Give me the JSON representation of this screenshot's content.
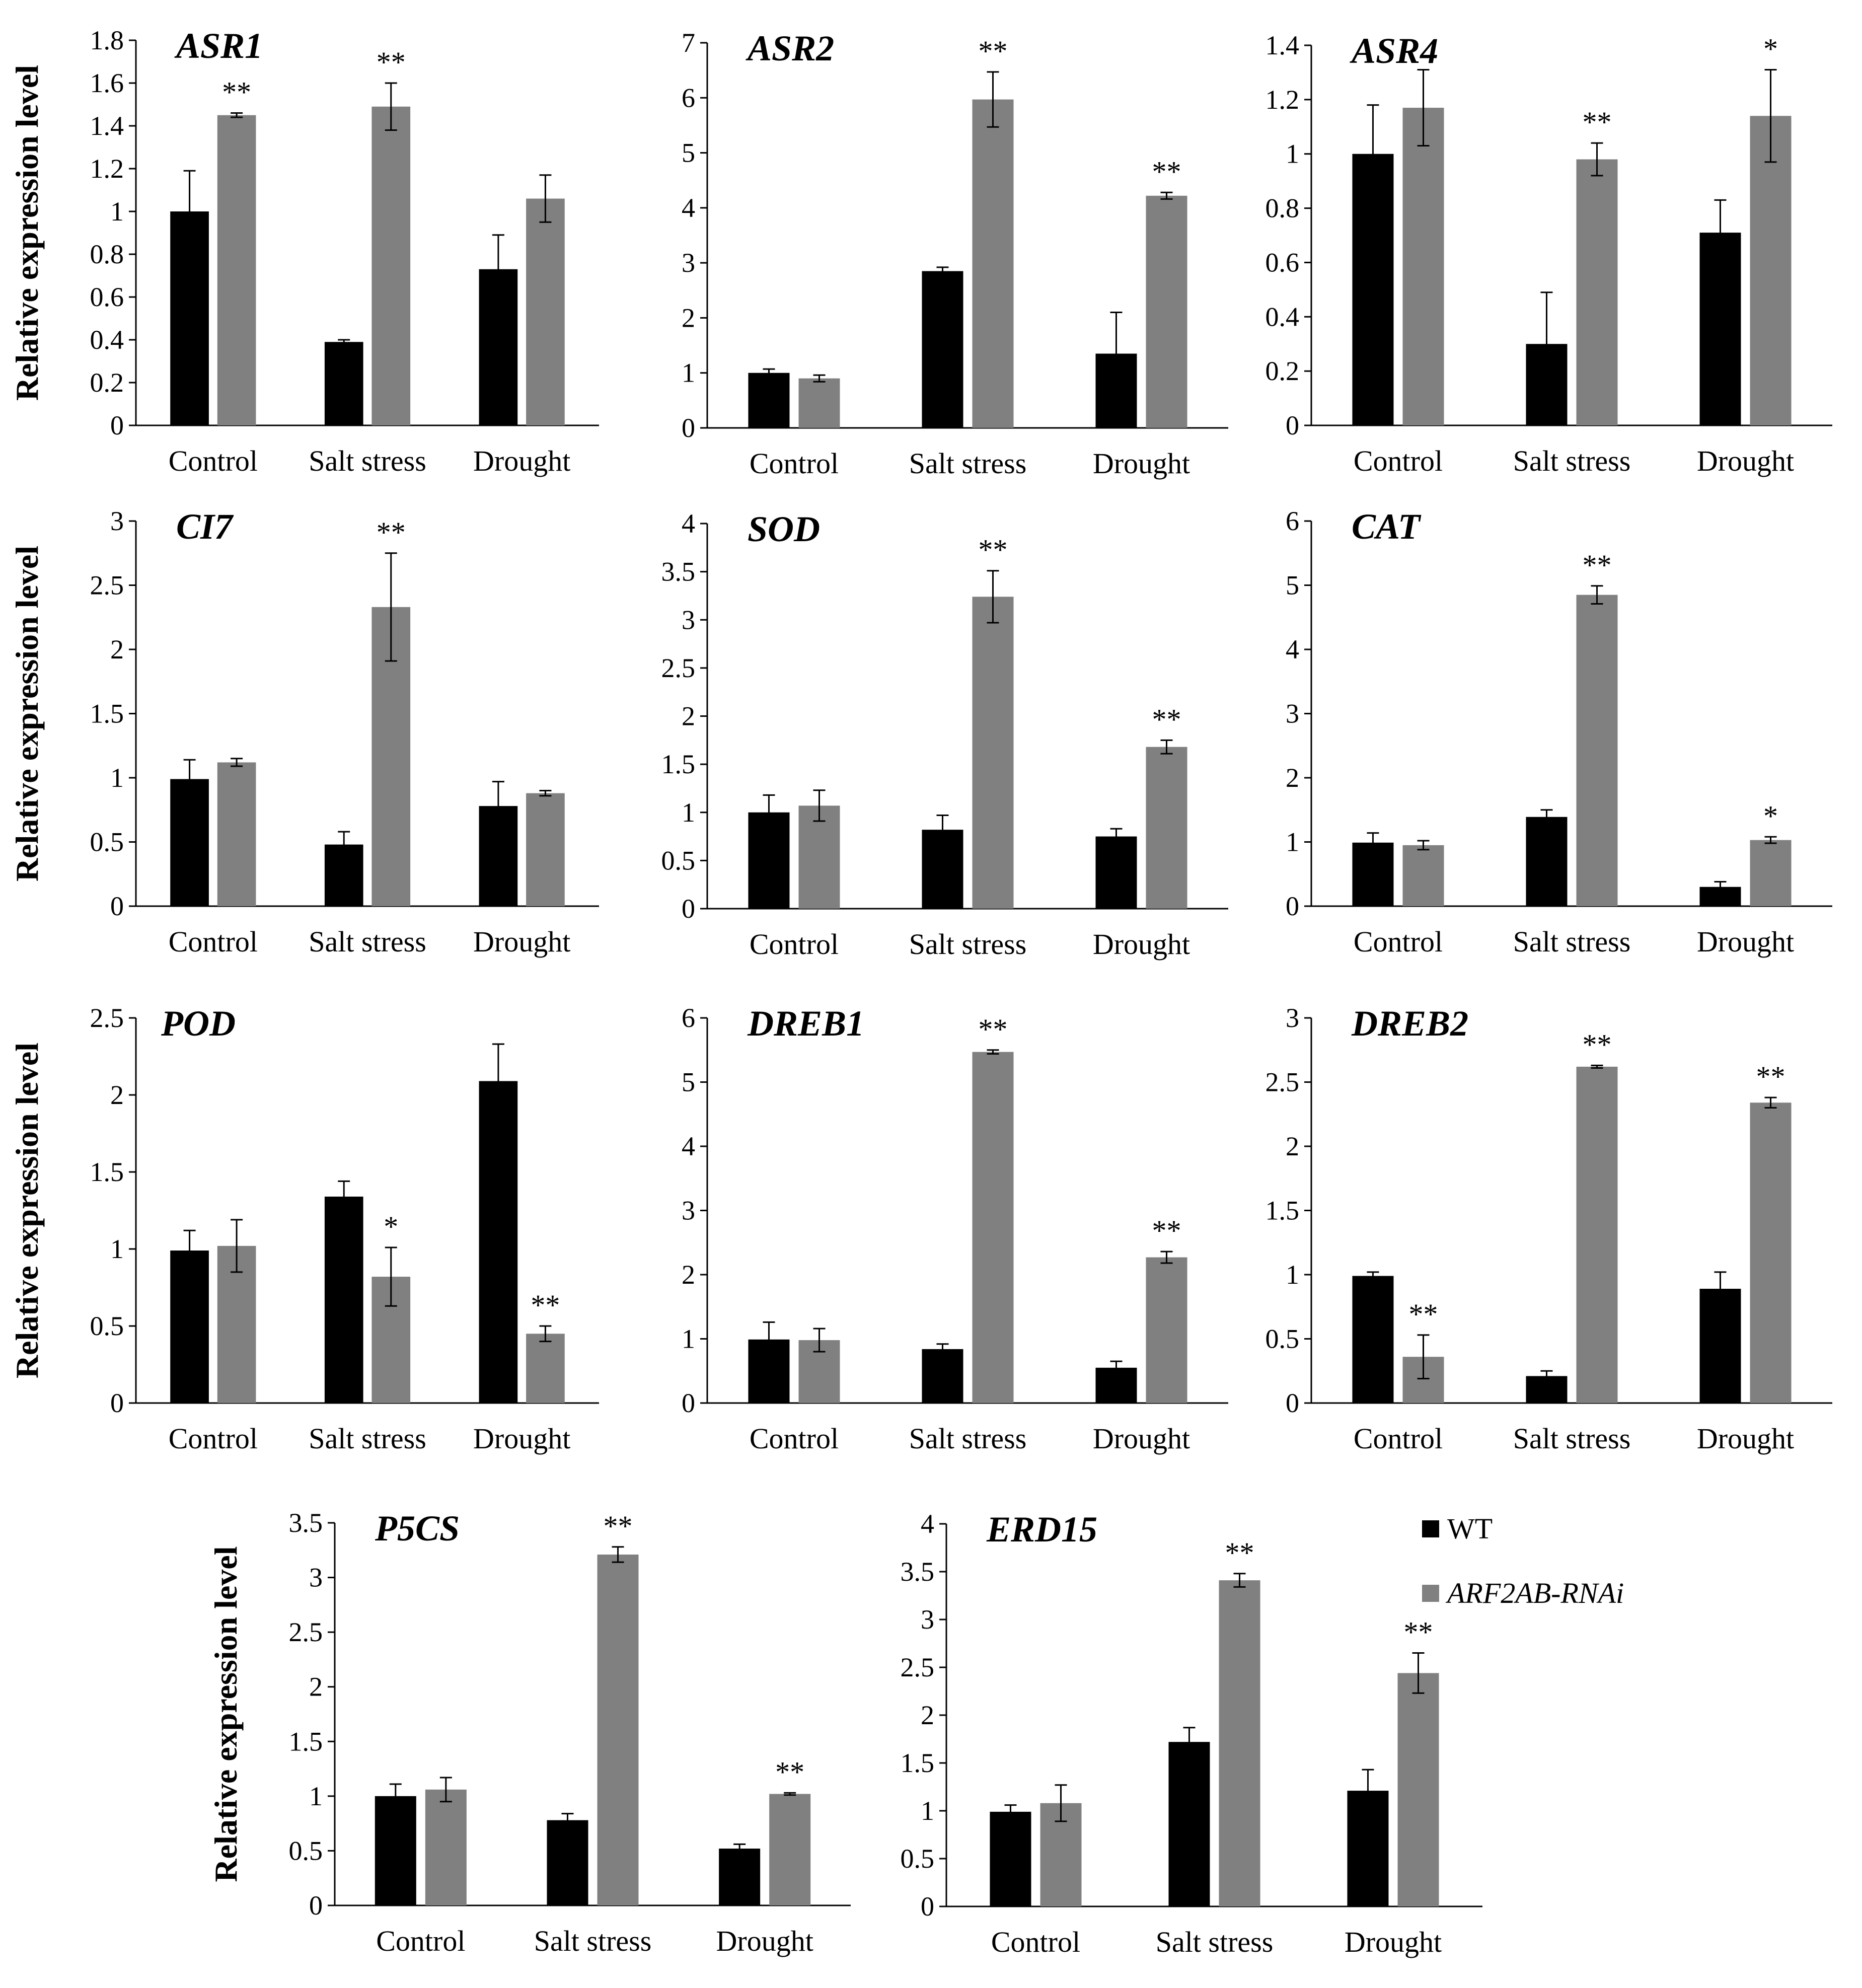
{
  "figure": {
    "y_axis_label": "Relative expression level",
    "categories": [
      "Control",
      "Salt stress",
      "Drought"
    ],
    "legend": {
      "wt_label": "WT",
      "rnai_label": "ARF2AB-RNAi",
      "wt_color": "#000000",
      "rnai_color": "#808080"
    }
  },
  "chart_data": [
    {
      "type": "bar",
      "title": "ASR1",
      "ylabel": "Relative expression level",
      "categories": [
        "Control",
        "Salt stress",
        "Drought"
      ],
      "ylim": [
        0,
        1.8
      ],
      "ticks": [
        "0",
        "0.2",
        "0.4",
        "0.6",
        "0.8",
        "1",
        "1.2",
        "1.4",
        "1.6",
        "1.8"
      ],
      "series": [
        {
          "name": "WT",
          "values": [
            1.0,
            0.39,
            0.73
          ],
          "errors": [
            0.19,
            0.01,
            0.16
          ],
          "significance": [
            "",
            "",
            ""
          ]
        },
        {
          "name": "ARF2AB-RNAi",
          "values": [
            1.45,
            1.49,
            1.06
          ],
          "errors": [
            0.01,
            0.11,
            0.11
          ],
          "significance": [
            "**",
            "**",
            ""
          ]
        }
      ]
    },
    {
      "type": "bar",
      "title": "ASR2",
      "ylabel": "",
      "categories": [
        "Control",
        "Salt stress",
        "Drought"
      ],
      "ylim": [
        0,
        7
      ],
      "ticks": [
        "0",
        "1",
        "2",
        "3",
        "4",
        "5",
        "6",
        "7"
      ],
      "series": [
        {
          "name": "WT",
          "values": [
            1.0,
            2.85,
            1.35
          ],
          "errors": [
            0.07,
            0.07,
            0.75
          ],
          "significance": [
            "",
            "",
            ""
          ]
        },
        {
          "name": "ARF2AB-RNAi",
          "values": [
            0.9,
            5.97,
            4.22
          ],
          "errors": [
            0.06,
            0.5,
            0.06
          ],
          "significance": [
            "",
            "**",
            "**"
          ]
        }
      ]
    },
    {
      "type": "bar",
      "title": "ASR4",
      "ylabel": "",
      "categories": [
        "Control",
        "Salt stress",
        "Drought"
      ],
      "ylim": [
        0,
        1.4
      ],
      "ticks": [
        "0",
        "0.2",
        "0.4",
        "0.6",
        "0.8",
        "1",
        "1.2",
        "1.4"
      ],
      "series": [
        {
          "name": "WT",
          "values": [
            1.0,
            0.3,
            0.71
          ],
          "errors": [
            0.18,
            0.19,
            0.12
          ],
          "significance": [
            "",
            "",
            ""
          ]
        },
        {
          "name": "ARF2AB-RNAi",
          "values": [
            1.17,
            0.98,
            1.14
          ],
          "errors": [
            0.14,
            0.06,
            0.17
          ],
          "significance": [
            "",
            "**",
            "*"
          ]
        }
      ]
    },
    {
      "type": "bar",
      "title": "CI7",
      "ylabel": "Relative expression level",
      "categories": [
        "Control",
        "Salt stress",
        "Drought"
      ],
      "ylim": [
        0,
        3
      ],
      "ticks": [
        "0",
        "0.5",
        "1",
        "1.5",
        "2",
        "2.5",
        "3"
      ],
      "series": [
        {
          "name": "WT",
          "values": [
            0.99,
            0.48,
            0.78
          ],
          "errors": [
            0.15,
            0.1,
            0.19
          ],
          "significance": [
            "",
            "",
            ""
          ]
        },
        {
          "name": "ARF2AB-RNAi",
          "values": [
            1.12,
            2.33,
            0.88
          ],
          "errors": [
            0.03,
            0.42,
            0.02
          ],
          "significance": [
            "",
            "**",
            ""
          ]
        }
      ]
    },
    {
      "type": "bar",
      "title": "SOD",
      "ylabel": "",
      "categories": [
        "Control",
        "Salt stress",
        "Drought"
      ],
      "ylim": [
        0,
        4
      ],
      "ticks": [
        "0",
        "0.5",
        "1",
        "1.5",
        "2",
        "2.5",
        "3",
        "3.5",
        "4"
      ],
      "series": [
        {
          "name": "WT",
          "values": [
            1.0,
            0.82,
            0.75
          ],
          "errors": [
            0.18,
            0.15,
            0.08
          ],
          "significance": [
            "",
            "",
            ""
          ]
        },
        {
          "name": "ARF2AB-RNAi",
          "values": [
            1.07,
            3.24,
            1.68
          ],
          "errors": [
            0.16,
            0.27,
            0.07
          ],
          "significance": [
            "",
            "**",
            "**"
          ]
        }
      ]
    },
    {
      "type": "bar",
      "title": "CAT",
      "ylabel": "",
      "categories": [
        "Control",
        "Salt stress",
        "Drought"
      ],
      "ylim": [
        0,
        6
      ],
      "ticks": [
        "0",
        "1",
        "2",
        "3",
        "4",
        "5",
        "6"
      ],
      "series": [
        {
          "name": "WT",
          "values": [
            0.99,
            1.39,
            0.3
          ],
          "errors": [
            0.15,
            0.11,
            0.08
          ],
          "significance": [
            "",
            "",
            ""
          ]
        },
        {
          "name": "ARF2AB-RNAi",
          "values": [
            0.95,
            4.85,
            1.03
          ],
          "errors": [
            0.07,
            0.14,
            0.05
          ],
          "significance": [
            "",
            "**",
            "*"
          ]
        }
      ]
    },
    {
      "type": "bar",
      "title": "POD",
      "ylabel": "Relative expression level",
      "categories": [
        "Control",
        "Salt stress",
        "Drought"
      ],
      "ylim": [
        0,
        2.5
      ],
      "ticks": [
        "0",
        "0.5",
        "1",
        "1.5",
        "2",
        "2.5"
      ],
      "series": [
        {
          "name": "WT",
          "values": [
            0.99,
            1.34,
            2.09
          ],
          "errors": [
            0.13,
            0.1,
            0.24
          ],
          "significance": [
            "",
            "",
            ""
          ]
        },
        {
          "name": "ARF2AB-RNAi",
          "values": [
            1.02,
            0.82,
            0.45
          ],
          "errors": [
            0.17,
            0.19,
            0.05
          ],
          "significance": [
            "",
            "*",
            "**"
          ]
        }
      ]
    },
    {
      "type": "bar",
      "title": "DREB1",
      "ylabel": "",
      "categories": [
        "Control",
        "Salt stress",
        "Drought"
      ],
      "ylim": [
        0,
        6
      ],
      "ticks": [
        "0",
        "1",
        "2",
        "3",
        "4",
        "5",
        "6"
      ],
      "series": [
        {
          "name": "WT",
          "values": [
            0.99,
            0.84,
            0.55
          ],
          "errors": [
            0.27,
            0.08,
            0.1
          ],
          "significance": [
            "",
            "",
            ""
          ]
        },
        {
          "name": "ARF2AB-RNAi",
          "values": [
            0.98,
            5.47,
            2.27
          ],
          "errors": [
            0.18,
            0.03,
            0.09
          ],
          "significance": [
            "",
            "**",
            "**"
          ]
        }
      ]
    },
    {
      "type": "bar",
      "title": "DREB2",
      "ylabel": "",
      "categories": [
        "Control",
        "Salt stress",
        "Drought"
      ],
      "ylim": [
        0,
        3
      ],
      "ticks": [
        "0",
        "0.5",
        "1",
        "1.5",
        "2",
        "2.5",
        "3"
      ],
      "series": [
        {
          "name": "WT",
          "values": [
            0.99,
            0.21,
            0.89
          ],
          "errors": [
            0.03,
            0.04,
            0.13
          ],
          "significance": [
            "",
            "",
            ""
          ]
        },
        {
          "name": "ARF2AB-RNAi",
          "values": [
            0.36,
            2.62,
            2.34
          ],
          "errors": [
            0.17,
            0.01,
            0.04
          ],
          "significance": [
            "**",
            "**",
            "**"
          ]
        }
      ]
    },
    {
      "type": "bar",
      "title": "P5CS",
      "ylabel": "Relative expression level",
      "categories": [
        "Control",
        "Salt stress",
        "Drought"
      ],
      "ylim": [
        0,
        3.5
      ],
      "ticks": [
        "0",
        "0.5",
        "1",
        "1.5",
        "2",
        "2.5",
        "3",
        "3.5"
      ],
      "series": [
        {
          "name": "WT",
          "values": [
            1.0,
            0.78,
            0.52
          ],
          "errors": [
            0.11,
            0.06,
            0.04
          ],
          "significance": [
            "",
            "",
            ""
          ]
        },
        {
          "name": "ARF2AB-RNAi",
          "values": [
            1.06,
            3.21,
            1.02
          ],
          "errors": [
            0.11,
            0.07,
            0.01
          ],
          "significance": [
            "",
            "**",
            "**"
          ]
        }
      ]
    },
    {
      "type": "bar",
      "title": "ERD15",
      "ylabel": "",
      "categories": [
        "Control",
        "Salt stress",
        "Drought"
      ],
      "ylim": [
        0,
        4
      ],
      "ticks": [
        "0",
        "0.5",
        "1",
        "1.5",
        "2",
        "2.5",
        "3",
        "3.5",
        "4"
      ],
      "series": [
        {
          "name": "WT",
          "values": [
            0.99,
            1.72,
            1.21
          ],
          "errors": [
            0.07,
            0.15,
            0.22
          ],
          "significance": [
            "",
            "",
            ""
          ]
        },
        {
          "name": "ARF2AB-RNAi",
          "values": [
            1.08,
            3.41,
            2.44
          ],
          "errors": [
            0.19,
            0.07,
            0.21
          ],
          "significance": [
            "",
            "**",
            "**"
          ]
        }
      ]
    }
  ]
}
